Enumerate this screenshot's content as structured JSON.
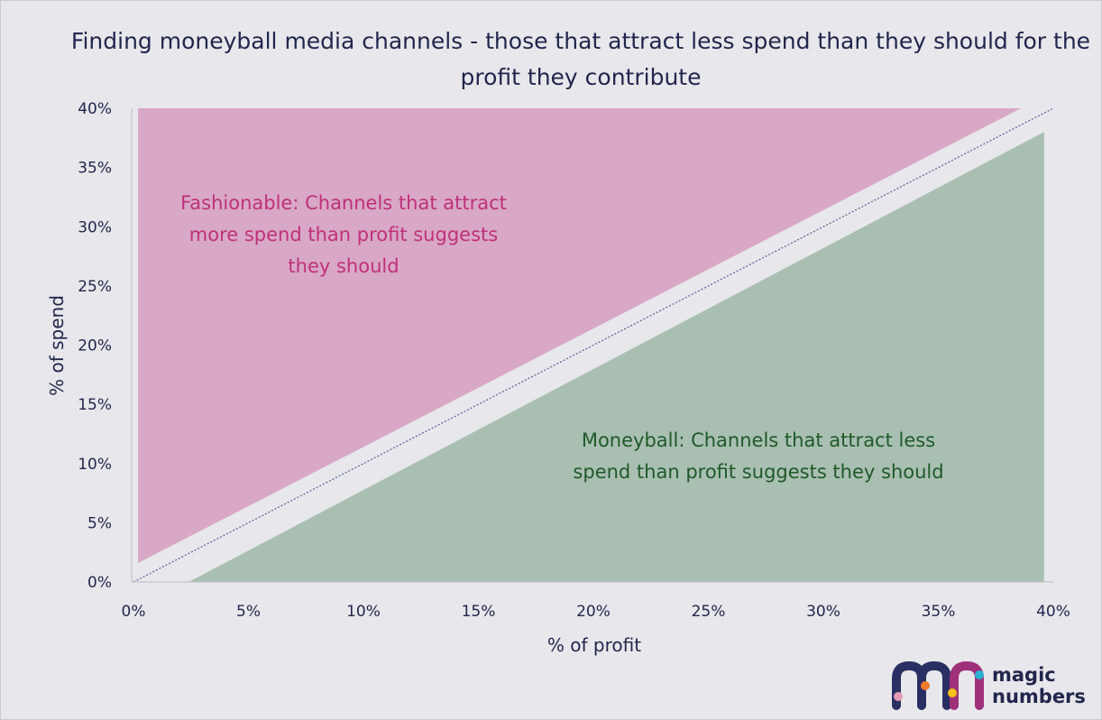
{
  "chart_data": {
    "type": "area",
    "title": "Finding moneyball media channels - those that attract less spend than they should for the profit they contribute",
    "xlabel": "% of profit",
    "ylabel": "% of spend",
    "xlim": [
      0,
      40
    ],
    "ylim": [
      0,
      40
    ],
    "x_ticks": [
      "0%",
      "5%",
      "10%",
      "15%",
      "20%",
      "25%",
      "30%",
      "35%",
      "40%"
    ],
    "y_ticks": [
      "0%",
      "5%",
      "10%",
      "15%",
      "20%",
      "25%",
      "30%",
      "35%",
      "40%"
    ],
    "grid": false,
    "reference_line": {
      "x": [
        0,
        40
      ],
      "y": [
        0,
        40
      ],
      "style": "dotted"
    },
    "regions": [
      {
        "name": "fashionable",
        "label": "Fashionable: Channels that attract more spend than profit suggests they should",
        "color": "#d8a8c6",
        "text_color": "#c0307a",
        "polygon": [
          [
            0.2,
            1.6
          ],
          [
            38.6,
            40
          ],
          [
            0.2,
            40
          ]
        ]
      },
      {
        "name": "moneyball",
        "label": "Moneyball: Channels that attract less spend than profit suggests they should",
        "color": "#a9bfb2",
        "text_color": "#1f5a28",
        "polygon": [
          [
            2.4,
            0
          ],
          [
            39.6,
            38
          ],
          [
            39.6,
            0
          ]
        ]
      }
    ]
  },
  "colors": {
    "background": "#e8e8ec",
    "axis": "#22264d",
    "reference_line": "#5a6a9a"
  },
  "brand": {
    "logo_icon": "magic-numbers-mn-logo-icon",
    "name_line1": "magic",
    "name_line2": "numbers"
  }
}
